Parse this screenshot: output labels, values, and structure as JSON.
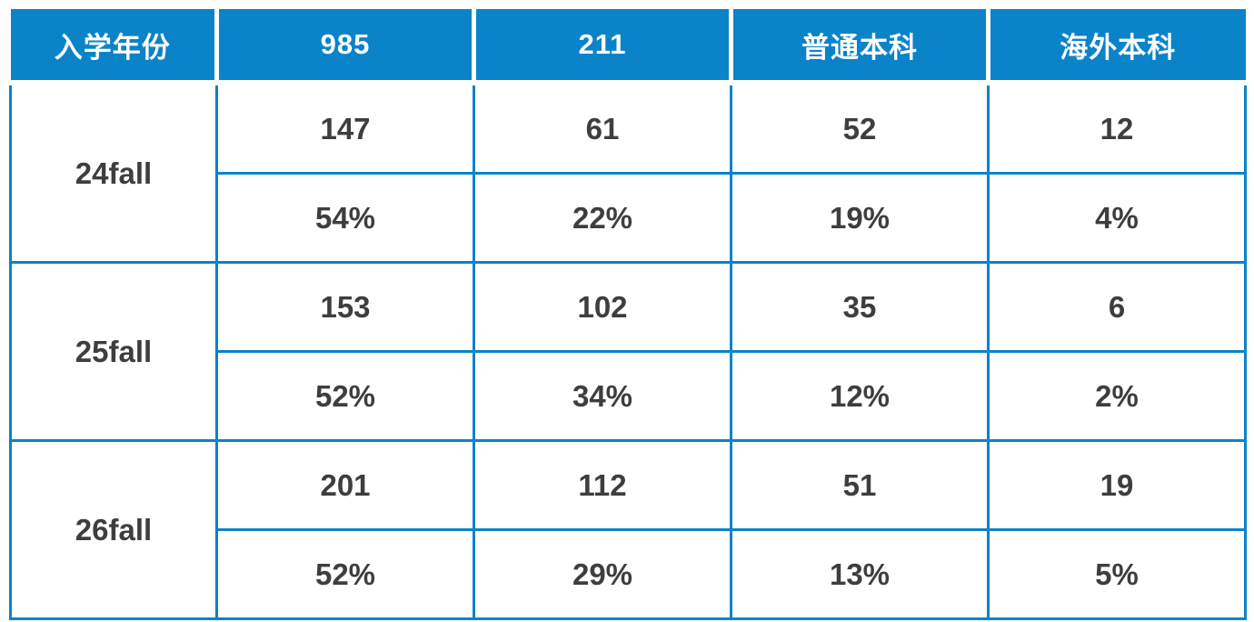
{
  "table": {
    "columns": [
      "入学年份",
      "985",
      "211",
      "普通本科",
      "海外本科"
    ],
    "groups": [
      {
        "label": "24fall",
        "counts": [
          "147",
          "61",
          "52",
          "12"
        ],
        "percents": [
          "54%",
          "22%",
          "19%",
          "4%"
        ]
      },
      {
        "label": "25fall",
        "counts": [
          "153",
          "102",
          "35",
          "6"
        ],
        "percents": [
          "52%",
          "34%",
          "12%",
          "2%"
        ]
      },
      {
        "label": "26fall",
        "counts": [
          "201",
          "112",
          "51",
          "19"
        ],
        "percents": [
          "52%",
          "29%",
          "13%",
          "5%"
        ]
      }
    ],
    "colors": {
      "header_bg": "#0a83c8",
      "border": "#0a83c8",
      "header_text": "#ffffff",
      "body_text": "#3e3e40",
      "background": "#ffffff"
    }
  },
  "chart_data": {
    "type": "table",
    "title": "",
    "columns": [
      "入学年份",
      "985",
      "211",
      "普通本科",
      "海外本科"
    ],
    "rows": [
      [
        "24fall",
        147,
        61,
        52,
        12
      ],
      [
        "24fall",
        "54%",
        "22%",
        "19%",
        "4%"
      ],
      [
        "25fall",
        153,
        102,
        35,
        6
      ],
      [
        "25fall",
        "52%",
        "34%",
        "12%",
        "2%"
      ],
      [
        "26fall",
        201,
        112,
        51,
        19
      ],
      [
        "26fall",
        "52%",
        "29%",
        "13%",
        "5%"
      ]
    ],
    "notes": "Each year group has a count row and a percentage row; 入学年份 cell spans both rows."
  }
}
